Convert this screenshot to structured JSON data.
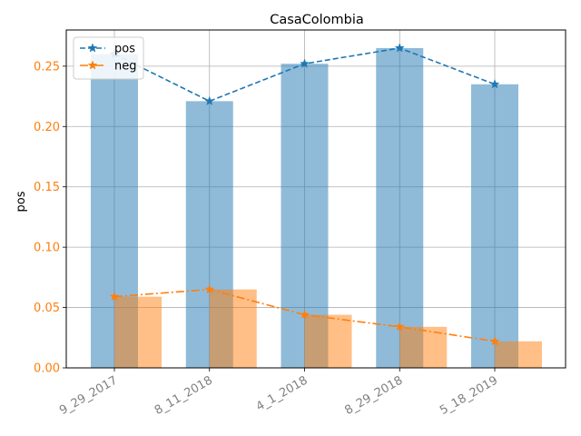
{
  "chart_data": {
    "type": "bar",
    "title": "CasaColombia",
    "xlabel": "",
    "ylabel": "pos",
    "categories": [
      "9_29_2017",
      "8_11_2018",
      "4_1_2018",
      "8_29_2018",
      "5_18_2019"
    ],
    "series": [
      {
        "name": "pos",
        "values": [
          0.26,
          0.221,
          0.252,
          0.265,
          0.235
        ],
        "color": "#1f77b4",
        "marker": "star",
        "linestyle": "dashed"
      },
      {
        "name": "neg",
        "values": [
          0.059,
          0.065,
          0.044,
          0.034,
          0.022
        ],
        "color": "#ff7f0e",
        "marker": "star",
        "linestyle": "dashdot"
      }
    ],
    "ylim": [
      0,
      0.28
    ],
    "yticks": [
      "0.00",
      "0.05",
      "0.10",
      "0.15",
      "0.20",
      "0.25"
    ],
    "ytick_values": [
      0,
      0.05,
      0.1,
      0.15,
      0.2,
      0.25
    ],
    "ytick_color": "#ff7f0e",
    "xtick_color": "#808080",
    "xtick_rotation": 30,
    "grid": true,
    "legend": "top-left"
  }
}
